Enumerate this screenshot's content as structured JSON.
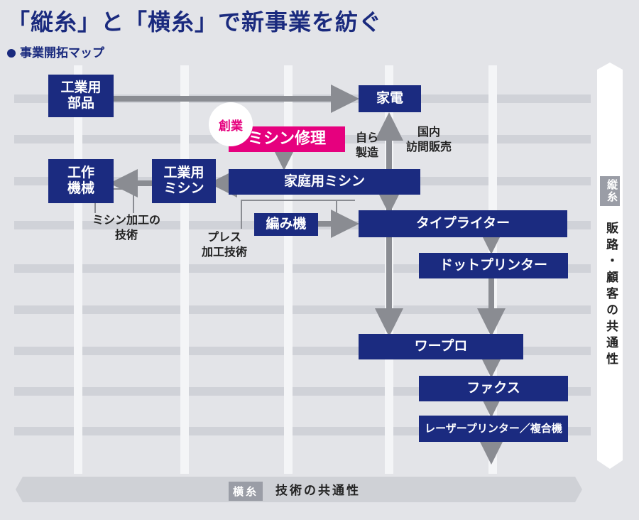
{
  "title": "「縦糸」と「横糸」で新事業を紡ぐ",
  "subtitle": "事業開拓マップ",
  "colors": {
    "navy": "#1b2b80",
    "pink": "#e6007e",
    "arrow_gray": "#8a8c92",
    "band": "#d0d2d8",
    "background": "#e3e4e8"
  },
  "founding_badge": "創業",
  "boxes": {
    "industrial_parts": "工業用\n部品",
    "home_appliances": "家電",
    "sewing_repair": "ミシン修理",
    "machine_tools": "工作\n機械",
    "industrial_sewing": "工業用\nミシン",
    "home_sewing": "家庭用ミシン",
    "knitting": "編み機",
    "typewriter": "タイプライター",
    "dot_printer": "ドットプリンター",
    "word_processor": "ワープロ",
    "fax": "ファクス",
    "laser_printer": "レーザープリンター／複合機"
  },
  "labels": {
    "self_manufacture": "自ら\n製造",
    "domestic_sales": "国内\n訪問販売",
    "sewing_processing": "ミシン加工の\n技術",
    "press_processing": "プレス\n加工技術"
  },
  "axes": {
    "horizontal_tag": "横糸",
    "horizontal_text": "技術の共通性",
    "vertical_tag": "縦糸",
    "vertical_text": "販路・顧客の共通性"
  }
}
